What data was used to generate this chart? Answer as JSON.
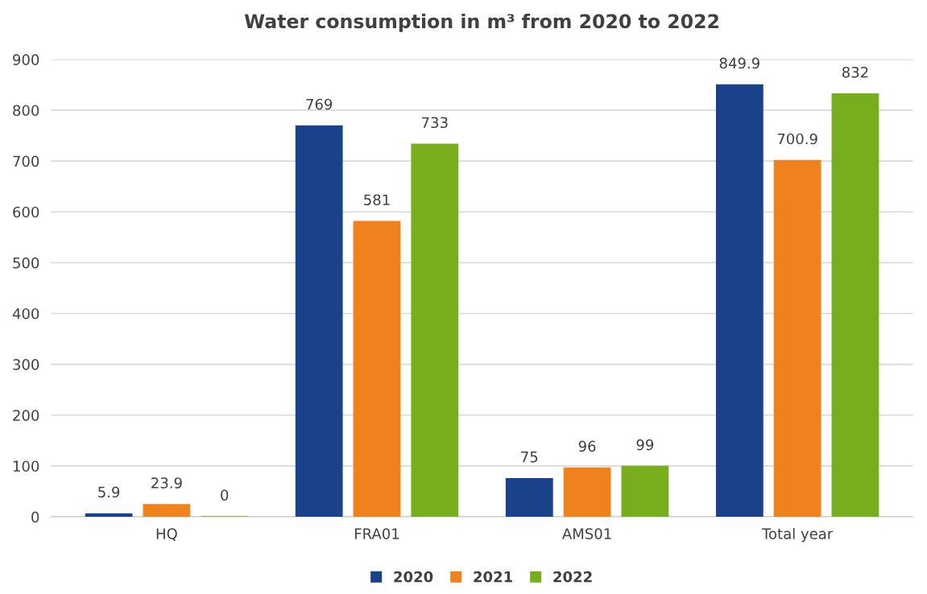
{
  "chart_data": {
    "type": "bar",
    "title": "Water consumption in m³ from 2020 to 2022",
    "categories": [
      "HQ",
      "FRA01",
      "AMS01",
      "Total year"
    ],
    "series": [
      {
        "name": "2020",
        "color": "#1a428a",
        "values": [
          5.9,
          769,
          75,
          849.9
        ]
      },
      {
        "name": "2021",
        "color": "#f0821e",
        "values": [
          23.9,
          581,
          96,
          700.9
        ]
      },
      {
        "name": "2022",
        "color": "#78ae1e",
        "values": [
          0,
          733,
          99,
          832
        ]
      }
    ],
    "ylim": [
      0,
      900
    ],
    "yticks": [
      0,
      100,
      200,
      300,
      400,
      500,
      600,
      700,
      800,
      900
    ],
    "grid": "y",
    "legend": "bottom",
    "data_labels": true
  }
}
